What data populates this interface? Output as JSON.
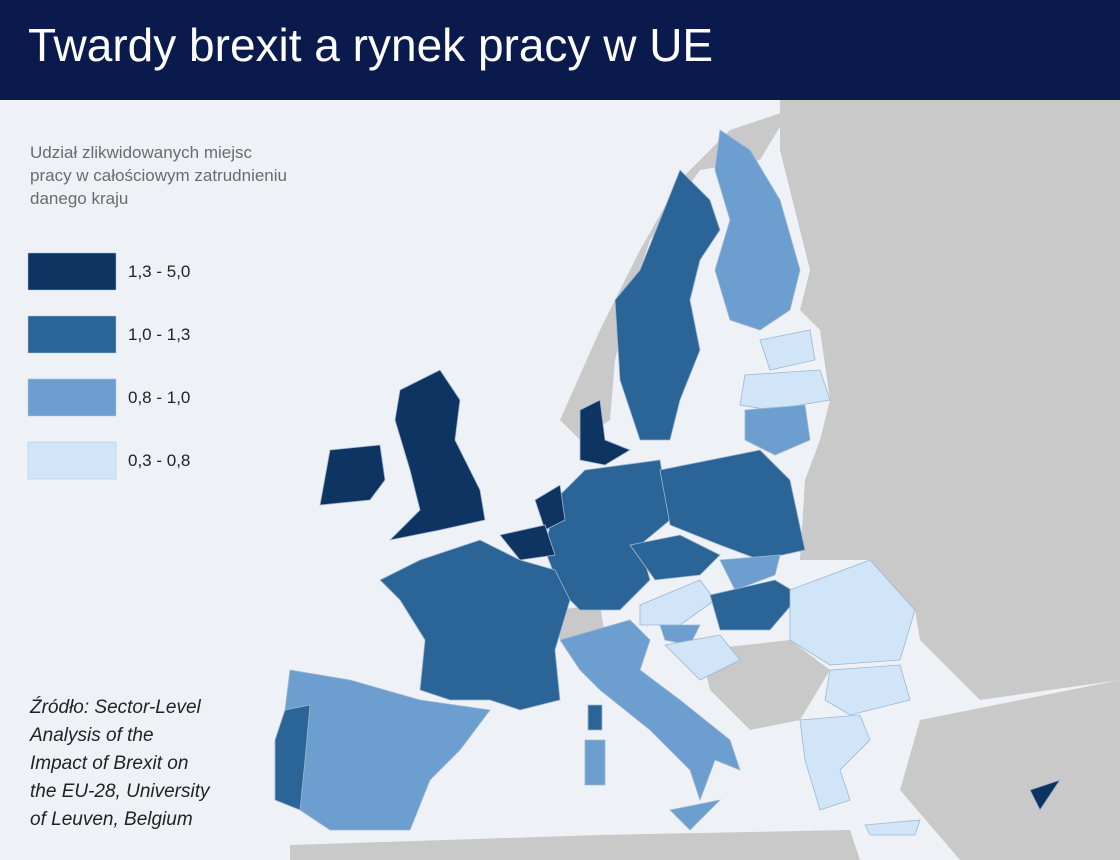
{
  "header": {
    "title": "Twardy brexit a rynek pracy w UE"
  },
  "legend": {
    "title": [
      "Udział zlikwidowanych miejsc",
      "pracy w całościowym zatrudnieniu",
      "danego kraju"
    ],
    "items": [
      {
        "label": "1,3 - 5,0",
        "color": "#0e3562"
      },
      {
        "label": "1,0 - 1,3",
        "color": "#2b6598"
      },
      {
        "label": "0,8 - 1,0",
        "color": "#6c9fcf"
      },
      {
        "label": "0,3 - 0,8",
        "color": "#d0e5f8"
      }
    ]
  },
  "source": [
    "Źródło: Sector-Level",
    "Analysis of the",
    "Impact of Brexit on",
    "the EU-28, University",
    "of Leuven, Belgium"
  ]
}
